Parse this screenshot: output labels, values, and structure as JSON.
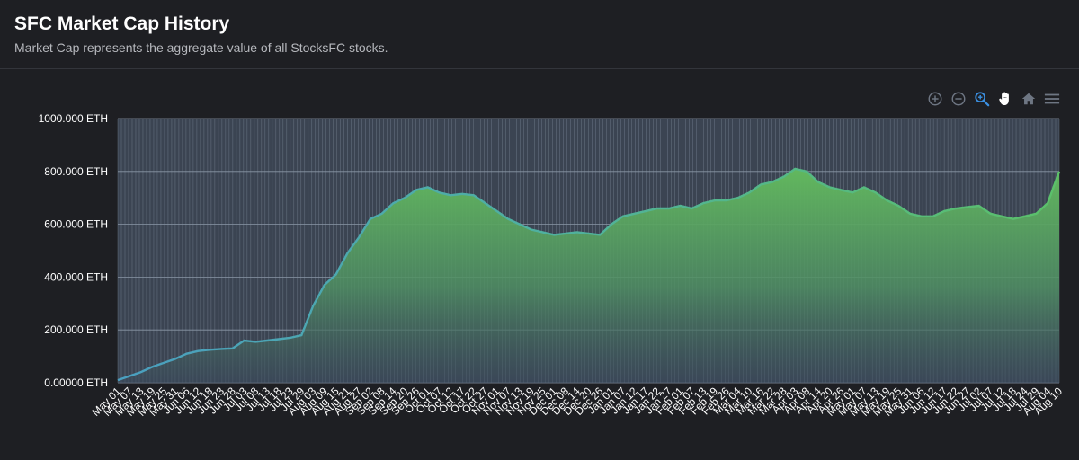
{
  "header": {
    "title": "SFC Market Cap History",
    "subtitle": "Market Cap represents the aggregate value of all StocksFC stocks."
  },
  "toolbar": {
    "icons": [
      "zoom-in-icon",
      "zoom-out-icon",
      "zoom-select-icon",
      "pan-hand-icon",
      "home-reset-icon",
      "menu-icon"
    ],
    "active_icon": "zoom-select-icon",
    "colors": {
      "default": "#6e7683",
      "active": "#3b8fe0"
    }
  },
  "chart_data": {
    "type": "area",
    "title": "",
    "xlabel": "",
    "ylabel": "",
    "ylim": [
      0,
      1000
    ],
    "y_unit": "ETH",
    "y_ticks": [
      {
        "value": 0,
        "label": "0.00000 ETH"
      },
      {
        "value": 200,
        "label": "200.000 ETH"
      },
      {
        "value": 400,
        "label": "400.000 ETH"
      },
      {
        "value": 600,
        "label": "600.000 ETH"
      },
      {
        "value": 800,
        "label": "800.000 ETH"
      },
      {
        "value": 1000,
        "label": "1000.000 ETH"
      }
    ],
    "x_tick_labels": [
      "May 01",
      "May 07",
      "May 13",
      "May 19",
      "May 25",
      "May 31",
      "Jun 06",
      "Jun 12",
      "Jun 18",
      "Jun 23",
      "Jun 28",
      "Jul 03",
      "Jul 08",
      "Jul 13",
      "Jul 18",
      "Jul 23",
      "Jul 29",
      "Aug 03",
      "Aug 09",
      "Aug 15",
      "Aug 21",
      "Aug 27",
      "Sep 02",
      "Sep 08",
      "Sep 14",
      "Sep 20",
      "Sep 26",
      "Oct 01",
      "Oct 07",
      "Oct 12",
      "Oct 17",
      "Oct 22",
      "Oct 27",
      "Nov 01",
      "Nov 07",
      "Nov 13",
      "Nov 19",
      "Nov 25",
      "Dec 01",
      "Dec 08",
      "Dec 14",
      "Dec 20",
      "Dec 26",
      "Jan 01",
      "Jan 07",
      "Jan 12",
      "Jan 17",
      "Jan 22",
      "Jan 27",
      "Feb 01",
      "Feb 07",
      "Feb 13",
      "Feb 19",
      "Feb 26",
      "Mar 04",
      "Mar 10",
      "Mar 16",
      "Mar 22",
      "Mar 28",
      "Apr 03",
      "Apr 08",
      "Apr 14",
      "Apr 20",
      "Apr 26",
      "May 01",
      "May 07",
      "May 13",
      "May 19",
      "May 25",
      "May 31",
      "Jun 06",
      "Jun 12",
      "Jun 17",
      "Jun 22",
      "Jun 27",
      "Jul 02",
      "Jul 07",
      "Jul 12",
      "Jul 18",
      "Jul 24",
      "Jul 29",
      "Aug 04",
      "Aug 10"
    ],
    "grid": true,
    "legend": "none",
    "colors": {
      "line_start": "#4a9fc0",
      "line_end": "#5bc06a",
      "fill_top": "#62b85e",
      "fill_bottom": "#3a4a5c"
    },
    "series": [
      {
        "x": [
          "May 01",
          "May 07",
          "May 13",
          "May 19",
          "May 25",
          "May 31",
          "Jun 06",
          "Jun 12",
          "Jun 18",
          "Jun 23",
          "Jun 28",
          "Jul 03",
          "Jul 08",
          "Jul 13",
          "Jul 18",
          "Jul 23",
          "Jul 29",
          "Aug 03",
          "Aug 09",
          "Aug 15",
          "Aug 21",
          "Aug 27",
          "Sep 02",
          "Sep 08",
          "Sep 14",
          "Sep 20",
          "Sep 26",
          "Oct 01",
          "Oct 07",
          "Oct 12",
          "Oct 17",
          "Oct 22",
          "Oct 27",
          "Nov 01",
          "Nov 07",
          "Nov 13",
          "Nov 19",
          "Nov 25",
          "Dec 01",
          "Dec 08",
          "Dec 14",
          "Dec 20",
          "Dec 26",
          "Jan 01",
          "Jan 07",
          "Jan 12",
          "Jan 17",
          "Jan 22",
          "Jan 27",
          "Feb 01",
          "Feb 07",
          "Feb 13",
          "Feb 19",
          "Feb 26",
          "Mar 04",
          "Mar 10",
          "Mar 16",
          "Mar 22",
          "Mar 28",
          "Apr 03",
          "Apr 08",
          "Apr 14",
          "Apr 20",
          "Apr 26",
          "May 01",
          "May 07",
          "May 13",
          "May 19",
          "May 25",
          "May 31",
          "Jun 06",
          "Jun 12",
          "Jun 17",
          "Jun 22",
          "Jun 27",
          "Jul 02",
          "Jul 07",
          "Jul 12",
          "Jul 18",
          "Jul 24",
          "Jul 29",
          "Aug 04",
          "Aug 10"
        ],
        "values": [
          10,
          25,
          40,
          60,
          75,
          90,
          110,
          120,
          125,
          128,
          130,
          160,
          155,
          160,
          165,
          170,
          180,
          290,
          370,
          410,
          490,
          550,
          620,
          640,
          680,
          700,
          730,
          740,
          720,
          710,
          715,
          710,
          680,
          650,
          620,
          600,
          580,
          570,
          560,
          565,
          570,
          565,
          560,
          600,
          630,
          640,
          650,
          660,
          660,
          670,
          660,
          680,
          690,
          690,
          700,
          720,
          750,
          760,
          780,
          810,
          800,
          760,
          740,
          730,
          720,
          740,
          720,
          690,
          670,
          640,
          630,
          630,
          650,
          660,
          665,
          670,
          640,
          630,
          620,
          630,
          640,
          680,
          800
        ]
      }
    ]
  }
}
